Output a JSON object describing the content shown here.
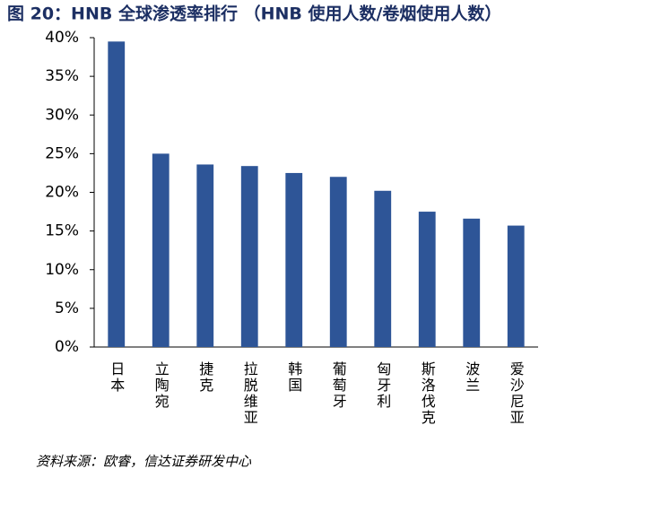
{
  "chart_data": {
    "type": "bar",
    "title": "图 20：HNB 全球渗透率排行 （HNB 使用人数/卷烟使用人数）",
    "categories": [
      "日本",
      "立陶宛",
      "捷克",
      "拉脱维亚",
      "韩国",
      "葡萄牙",
      "匈牙利",
      "斯洛伐克",
      "波兰",
      "爱沙尼亚"
    ],
    "values": [
      39.5,
      25.0,
      23.6,
      23.4,
      22.5,
      22.0,
      20.2,
      17.5,
      16.6,
      15.7
    ],
    "color": "#2e5597",
    "ylim": [
      0,
      40
    ],
    "yticks": [
      {
        "value": 0,
        "label": "0%"
      },
      {
        "value": 5,
        "label": "5%"
      },
      {
        "value": 10,
        "label": "10%"
      },
      {
        "value": 15,
        "label": "15%"
      },
      {
        "value": 20,
        "label": "20%"
      },
      {
        "value": 25,
        "label": "25%"
      },
      {
        "value": 30,
        "label": "30%"
      },
      {
        "value": 35,
        "label": "35%"
      },
      {
        "value": 40,
        "label": "40%"
      }
    ],
    "grid": false,
    "source": "资料来源：欧睿，信达证券研发中心"
  }
}
